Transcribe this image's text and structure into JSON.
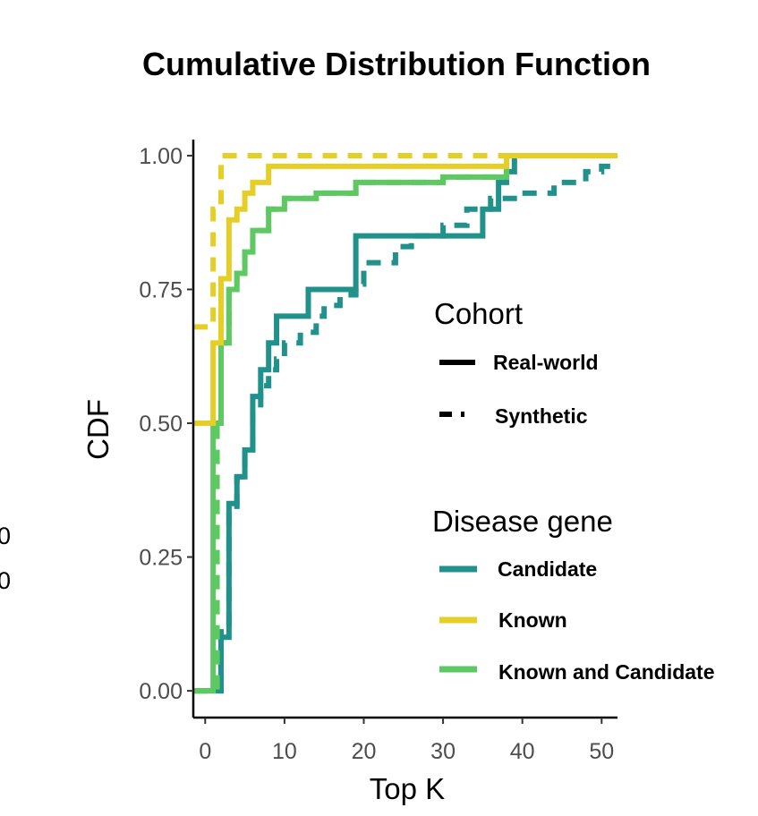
{
  "chart_data": {
    "type": "line",
    "step": true,
    "title": "Cumulative Distribution Function",
    "xlabel": "Top K",
    "ylabel": "CDF",
    "xlim": [
      -1.5,
      52
    ],
    "ylim": [
      -0.05,
      1.03
    ],
    "xticks": [
      0,
      10,
      20,
      30,
      40,
      50
    ],
    "yticks": [
      0.0,
      0.25,
      0.5,
      0.75,
      1.0
    ],
    "xtick_labels": [
      "0",
      "10",
      "20",
      "30",
      "40",
      "50"
    ],
    "ytick_labels": [
      "0.00",
      "0.25",
      "0.50",
      "0.75",
      "1.00"
    ],
    "grid": false,
    "legend_position": "right",
    "legend": {
      "cohort": {
        "title": "Cohort",
        "items": [
          {
            "label": "Real-world",
            "style": "solid"
          },
          {
            "label": "Synthetic",
            "style": "dashed"
          }
        ]
      },
      "disease_gene": {
        "title": "Disease gene",
        "items": [
          {
            "label": "Candidate",
            "color": "#21918c"
          },
          {
            "label": "Known",
            "color": "#e5cf26"
          },
          {
            "label": "Known and Candidate",
            "color": "#5ec962"
          }
        ]
      }
    },
    "series": [
      {
        "name": "Candidate / Synthetic",
        "gene": "Candidate",
        "cohort": "Synthetic",
        "color": "#21918c",
        "style": "dashed",
        "x": [
          -1.5,
          1.5,
          2,
          3,
          4,
          5,
          6,
          7,
          8,
          9,
          10,
          12,
          14,
          15,
          17,
          19,
          20,
          24,
          26,
          30,
          33,
          36,
          40,
          44,
          48,
          50
        ],
        "y": [
          0,
          0,
          0.12,
          0.33,
          0.4,
          0.45,
          0.52,
          0.57,
          0.6,
          0.62,
          0.65,
          0.67,
          0.7,
          0.72,
          0.74,
          0.76,
          0.8,
          0.83,
          0.85,
          0.87,
          0.9,
          0.92,
          0.93,
          0.95,
          0.97,
          0.98
        ]
      },
      {
        "name": "Candidate / Real-world",
        "gene": "Candidate",
        "cohort": "Real-world",
        "color": "#21918c",
        "style": "solid",
        "x": [
          -1.5,
          1.5,
          2,
          3,
          4,
          5,
          6,
          7,
          8,
          9,
          13,
          16,
          19,
          30,
          35,
          37,
          38,
          39
        ],
        "y": [
          0,
          0,
          0.1,
          0.35,
          0.4,
          0.45,
          0.55,
          0.6,
          0.65,
          0.7,
          0.75,
          0.75,
          0.85,
          0.85,
          0.9,
          0.95,
          0.97,
          1.0
        ]
      },
      {
        "name": "Known and Candidate / Synthetic",
        "gene": "Known and Candidate",
        "cohort": "Synthetic",
        "color": "#5ec962",
        "style": "dashed",
        "x": [
          -1.5,
          0.5,
          1.5,
          2,
          3,
          4,
          5,
          6,
          8,
          10,
          14,
          19,
          30,
          38
        ],
        "y": [
          0,
          0,
          0.5,
          0.65,
          0.75,
          0.78,
          0.82,
          0.86,
          0.9,
          0.92,
          0.93,
          0.95,
          0.96,
          1.0
        ]
      },
      {
        "name": "Known and Candidate / Real-world",
        "gene": "Known and Candidate",
        "cohort": "Real-world",
        "color": "#5ec962",
        "style": "solid",
        "x": [
          -1.5,
          0.5,
          1,
          2,
          3,
          4,
          5,
          6,
          8,
          10,
          14,
          19,
          30,
          38
        ],
        "y": [
          0,
          0,
          0.5,
          0.65,
          0.75,
          0.78,
          0.82,
          0.86,
          0.9,
          0.92,
          0.93,
          0.95,
          0.96,
          1.0
        ]
      },
      {
        "name": "Known / Synthetic",
        "gene": "Known",
        "cohort": "Synthetic",
        "color": "#e5cf26",
        "style": "dashed",
        "x": [
          -1.5,
          0.5,
          1,
          2
        ],
        "y": [
          0.68,
          0.68,
          0.9,
          1.0
        ]
      },
      {
        "name": "Known / Real-world",
        "gene": "Known",
        "cohort": "Real-world",
        "color": "#e5cf26",
        "style": "solid",
        "x": [
          -1.5,
          0.5,
          1,
          2,
          3,
          4,
          5,
          6,
          8,
          38
        ],
        "y": [
          0.5,
          0.5,
          0.65,
          0.77,
          0.88,
          0.9,
          0.93,
          0.95,
          0.98,
          1.0
        ]
      }
    ]
  },
  "stray_marks": [
    "0",
    "0"
  ]
}
